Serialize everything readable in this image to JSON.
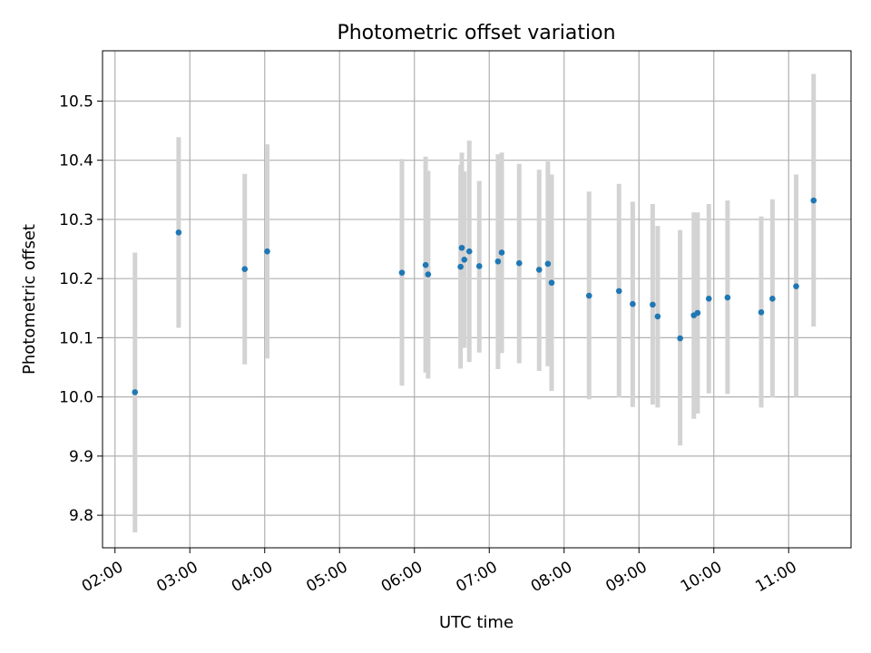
{
  "chart_data": {
    "type": "scatter",
    "title": "Photometric offset variation",
    "xlabel": "UTC time",
    "ylabel": "Photometric offset",
    "x_tick_labels": [
      "02:00",
      "03:00",
      "04:00",
      "05:00",
      "06:00",
      "07:00",
      "08:00",
      "09:00",
      "10:00",
      "11:00"
    ],
    "x_ticks": [
      "02:00",
      "03:00",
      "04:00",
      "05:00",
      "06:00",
      "07:00",
      "08:00",
      "09:00",
      "10:00",
      "11:00"
    ],
    "y_ticks": [
      9.8,
      9.9,
      10.0,
      10.1,
      10.2,
      10.3,
      10.4,
      10.5
    ],
    "y_tick_labels": [
      "9.8",
      "9.9",
      "10.0",
      "10.1",
      "10.2",
      "10.3",
      "10.4",
      "10.5"
    ],
    "xlim": [
      "01:50",
      "11:50"
    ],
    "ylim": [
      9.745,
      10.585
    ],
    "grid": true,
    "colors": {
      "point": "#1f77b4",
      "errorbar": "#d3d3d3",
      "grid": "#b0b0b0"
    },
    "points": [
      {
        "x": "02:16",
        "y": 10.008,
        "ylow": 9.771,
        "yhigh": 10.244
      },
      {
        "x": "02:51",
        "y": 10.278,
        "ylow": 10.117,
        "yhigh": 10.439
      },
      {
        "x": "03:44",
        "y": 10.216,
        "ylow": 10.055,
        "yhigh": 10.377
      },
      {
        "x": "04:02",
        "y": 10.246,
        "ylow": 10.065,
        "yhigh": 10.427
      },
      {
        "x": "05:50",
        "y": 10.21,
        "ylow": 10.019,
        "yhigh": 10.402
      },
      {
        "x": "06:09",
        "y": 10.223,
        "ylow": 10.041,
        "yhigh": 10.406
      },
      {
        "x": "06:11",
        "y": 10.207,
        "ylow": 10.031,
        "yhigh": 10.382
      },
      {
        "x": "06:37",
        "y": 10.22,
        "ylow": 10.048,
        "yhigh": 10.392
      },
      {
        "x": "06:38",
        "y": 10.252,
        "ylow": 10.09,
        "yhigh": 10.413
      },
      {
        "x": "06:40",
        "y": 10.232,
        "ylow": 10.083,
        "yhigh": 10.381
      },
      {
        "x": "06:44",
        "y": 10.246,
        "ylow": 10.059,
        "yhigh": 10.433
      },
      {
        "x": "06:52",
        "y": 10.221,
        "ylow": 10.075,
        "yhigh": 10.365
      },
      {
        "x": "07:07",
        "y": 10.229,
        "ylow": 10.047,
        "yhigh": 10.41
      },
      {
        "x": "07:10",
        "y": 10.244,
        "ylow": 10.074,
        "yhigh": 10.413
      },
      {
        "x": "07:24",
        "y": 10.226,
        "ylow": 10.057,
        "yhigh": 10.394
      },
      {
        "x": "07:40",
        "y": 10.215,
        "ylow": 10.044,
        "yhigh": 10.384
      },
      {
        "x": "07:47",
        "y": 10.225,
        "ylow": 10.052,
        "yhigh": 10.398
      },
      {
        "x": "07:50",
        "y": 10.193,
        "ylow": 10.01,
        "yhigh": 10.376
      },
      {
        "x": "08:20",
        "y": 10.171,
        "ylow": 9.996,
        "yhigh": 10.347
      },
      {
        "x": "08:44",
        "y": 10.179,
        "ylow": 9.999,
        "yhigh": 10.36
      },
      {
        "x": "08:55",
        "y": 10.157,
        "ylow": 9.983,
        "yhigh": 10.33
      },
      {
        "x": "09:11",
        "y": 10.156,
        "ylow": 9.987,
        "yhigh": 10.326
      },
      {
        "x": "09:15",
        "y": 10.136,
        "ylow": 9.982,
        "yhigh": 10.289
      },
      {
        "x": "09:33",
        "y": 10.099,
        "ylow": 9.918,
        "yhigh": 10.282
      },
      {
        "x": "09:44",
        "y": 10.138,
        "ylow": 9.963,
        "yhigh": 10.312
      },
      {
        "x": "09:47",
        "y": 10.142,
        "ylow": 9.972,
        "yhigh": 10.312
      },
      {
        "x": "09:56",
        "y": 10.166,
        "ylow": 10.006,
        "yhigh": 10.326
      },
      {
        "x": "10:11",
        "y": 10.168,
        "ylow": 10.005,
        "yhigh": 10.332
      },
      {
        "x": "10:38",
        "y": 10.143,
        "ylow": 9.982,
        "yhigh": 10.305
      },
      {
        "x": "10:47",
        "y": 10.166,
        "ylow": 9.999,
        "yhigh": 10.334
      },
      {
        "x": "11:06",
        "y": 10.187,
        "ylow": 10.0,
        "yhigh": 10.376
      },
      {
        "x": "11:20",
        "y": 10.332,
        "ylow": 10.119,
        "yhigh": 10.546
      }
    ]
  }
}
